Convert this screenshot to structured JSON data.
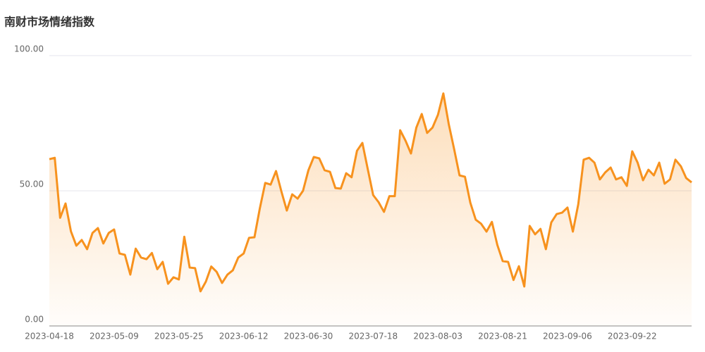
{
  "chart_data": {
    "type": "line",
    "title": "南财市场情绪指数",
    "categories": [
      "2023-04-18",
      null,
      null,
      null,
      null,
      null,
      null,
      null,
      null,
      null,
      null,
      null,
      "2023-05-09",
      null,
      null,
      null,
      null,
      null,
      null,
      null,
      null,
      null,
      null,
      null,
      "2023-05-25",
      null,
      null,
      null,
      null,
      null,
      null,
      null,
      null,
      null,
      null,
      null,
      "2023-06-12",
      null,
      null,
      null,
      null,
      null,
      null,
      null,
      null,
      null,
      null,
      null,
      "2023-06-30",
      null,
      null,
      null,
      null,
      null,
      null,
      null,
      null,
      null,
      null,
      null,
      "2023-07-18",
      null,
      null,
      null,
      null,
      null,
      null,
      null,
      null,
      null,
      null,
      null,
      "2023-08-03",
      null,
      null,
      null,
      null,
      null,
      null,
      null,
      null,
      null,
      null,
      null,
      "2023-08-21",
      null,
      null,
      null,
      null,
      null,
      null,
      null,
      null,
      null,
      null,
      null,
      "2023-09-06",
      null,
      null,
      null,
      null,
      null,
      null,
      null,
      null,
      null,
      null,
      null,
      "2023-09-22",
      null,
      null,
      null,
      null,
      null,
      null,
      null,
      null,
      null,
      null,
      null
    ],
    "series": [
      {
        "color": "#f7921e",
        "values": [
          61.7,
          62.2,
          40,
          45.3,
          35,
          29.7,
          31.8,
          28.4,
          34.4,
          36.2,
          30.5,
          34.4,
          35.7,
          26.8,
          26.3,
          19,
          28.6,
          25.3,
          24.7,
          27,
          21,
          23.7,
          15.6,
          18,
          17.2,
          33,
          21.6,
          21.4,
          12.8,
          16.4,
          22,
          20,
          15.9,
          19,
          20.6,
          25.3,
          26.8,
          32.6,
          32.8,
          43.5,
          52.9,
          52.3,
          57.3,
          49.7,
          42.7,
          48.7,
          47.1,
          50,
          57.6,
          62.5,
          62,
          57.6,
          57,
          51,
          50.8,
          56.5,
          55,
          64.8,
          67.7,
          58,
          48.4,
          45.8,
          42.2,
          48,
          48,
          72.4,
          68.5,
          63.8,
          73.4,
          78.4,
          71.4,
          73.4,
          78.1,
          86,
          74.7,
          65.4,
          55.7,
          55.2,
          45.6,
          39.3,
          37.8,
          34.9,
          38.5,
          30,
          24,
          23.7,
          17,
          22.1,
          14.6,
          37,
          33.9,
          35.9,
          28.4,
          38.3,
          41.4,
          41.9,
          43.8,
          34.9,
          45,
          61.5,
          62.2,
          60.4,
          54.2,
          56.8,
          58.6,
          54.2,
          55,
          51.8,
          64.6,
          60.4,
          53.9,
          57.8,
          55.7,
          60.4,
          52.6,
          54.2,
          61.5,
          59.1,
          54.7,
          53.1
        ]
      }
    ],
    "ylim": [
      0,
      100
    ],
    "yticks": [
      {
        "value": 0,
        "label": "0.00"
      },
      {
        "value": 50,
        "label": "50.00"
      },
      {
        "value": 100,
        "label": "100.00"
      }
    ],
    "grid": true
  }
}
